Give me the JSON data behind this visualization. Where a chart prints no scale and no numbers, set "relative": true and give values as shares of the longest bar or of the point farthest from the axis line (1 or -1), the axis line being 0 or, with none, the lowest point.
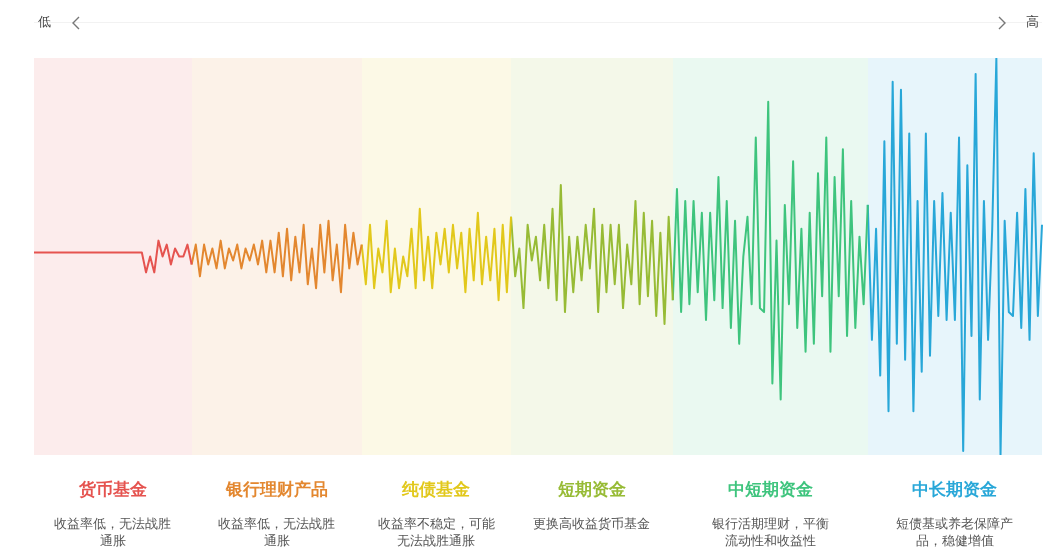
{
  "chart_data": {
    "type": "line",
    "relative": true,
    "grid": false,
    "legend": false,
    "marker": "none",
    "line_style": "solid",
    "categories": [
      null,
      null,
      null,
      null,
      null,
      null,
      null,
      null,
      null,
      null,
      null,
      null,
      null,
      null,
      null,
      null,
      null,
      null,
      null,
      null,
      null,
      null,
      null,
      null,
      null,
      null,
      null,
      null,
      null,
      null,
      null,
      null,
      null,
      null,
      null,
      null,
      null,
      null,
      null,
      null,
      null,
      null,
      null,
      null,
      null,
      null,
      null,
      null,
      null,
      null,
      null,
      null,
      null,
      null,
      null,
      null,
      null,
      null,
      null,
      null,
      null,
      null,
      null,
      null,
      null,
      null,
      null,
      null,
      null,
      null,
      null,
      null,
      null,
      null,
      null,
      null,
      null,
      null,
      null,
      null,
      null,
      null,
      null,
      null,
      null,
      null,
      null,
      null,
      null,
      null,
      null,
      null,
      null,
      null,
      null,
      null,
      null,
      null,
      null,
      null,
      null,
      null,
      null,
      null,
      null,
      null,
      null,
      null,
      null,
      null,
      null,
      null,
      null,
      null,
      null,
      null,
      null,
      null,
      null,
      null,
      null,
      null,
      null,
      null,
      null,
      null,
      null,
      null,
      null,
      null,
      null,
      null,
      null,
      null,
      null,
      null,
      null,
      null,
      null,
      null,
      null,
      null,
      null,
      null,
      null,
      null,
      null,
      null,
      null,
      null,
      null,
      null,
      null,
      null,
      null,
      null,
      null,
      null,
      null,
      null,
      null,
      null,
      null,
      null,
      null,
      null,
      null,
      null,
      null,
      null,
      null,
      null,
      null,
      null,
      null,
      null,
      null,
      null,
      null,
      null,
      null,
      null,
      null,
      null,
      null,
      null,
      null,
      null,
      null,
      null,
      null,
      null,
      null,
      null,
      null,
      null,
      null,
      null,
      null,
      null,
      null,
      null,
      null,
      null,
      null,
      null,
      null,
      null,
      null,
      null,
      null,
      null,
      null,
      null,
      null,
      null,
      null,
      null,
      null,
      null,
      null,
      null,
      null,
      null,
      null,
      null,
      null,
      null,
      null,
      null,
      null,
      null,
      null,
      null,
      null,
      null,
      null,
      null,
      null,
      null,
      null,
      null,
      null,
      null
    ],
    "annotations": [
      "低",
      "高",
      "收益率低，无法战胜通胀",
      "收益率低，无法战胜通胀",
      "收益率不稳定，可能无法战胜通胀",
      "更换高收益货币基金",
      "银行活期理财，平衡流动性和收益性",
      "短债基或养老保障产品，稳健增值"
    ],
    "series": [
      {
        "name": "货币基金",
        "color": "#e5534f",
        "values": [
          0.51,
          0.51,
          0.51,
          0.51,
          0.51,
          0.51,
          0.51,
          0.51,
          0.51,
          0.51,
          0.51,
          0.51,
          0.51,
          0.51,
          0.51,
          0.51,
          0.51,
          0.51,
          0.51,
          0.51,
          0.51,
          0.51,
          0.51,
          0.51,
          0.51,
          0.51,
          0.51,
          0.46,
          0.5,
          0.46,
          0.54,
          0.5,
          0.53,
          0.48,
          0.52,
          0.5,
          0.5,
          0.53,
          0.48,
          null,
          null,
          null,
          null,
          null,
          null,
          null,
          null,
          null,
          null,
          null,
          null,
          null,
          null,
          null,
          null,
          null,
          null,
          null,
          null,
          null,
          null,
          null,
          null,
          null,
          null,
          null,
          null,
          null,
          null,
          null,
          null,
          null,
          null,
          null,
          null,
          null,
          null,
          null,
          null,
          null,
          null,
          null,
          null,
          null,
          null,
          null,
          null,
          null,
          null,
          null,
          null,
          null,
          null,
          null,
          null,
          null,
          null,
          null,
          null,
          null,
          null,
          null,
          null,
          null,
          null,
          null,
          null,
          null,
          null,
          null,
          null,
          null,
          null,
          null,
          null,
          null,
          null,
          null,
          null,
          null,
          null,
          null,
          null,
          null,
          null,
          null,
          null,
          null,
          null,
          null,
          null,
          null,
          null,
          null,
          null,
          null,
          null,
          null,
          null,
          null,
          null,
          null,
          null,
          null,
          null,
          null,
          null,
          null,
          null,
          null,
          null,
          null,
          null,
          null,
          null,
          null,
          null,
          null,
          null,
          null,
          null,
          null,
          null,
          null,
          null,
          null,
          null,
          null,
          null,
          null,
          null,
          null,
          null,
          null,
          null,
          null,
          null,
          null,
          null,
          null,
          null,
          null,
          null,
          null,
          null,
          null,
          null,
          null,
          null,
          null,
          null,
          null,
          null,
          null,
          null,
          null,
          null,
          null,
          null,
          null,
          null,
          null,
          null,
          null,
          null,
          null,
          null,
          null,
          null,
          null,
          null,
          null,
          null,
          null,
          null,
          null,
          null,
          null,
          null,
          null,
          null,
          null,
          null,
          null,
          null,
          null,
          null,
          null,
          null,
          null,
          null,
          null,
          null,
          null,
          null,
          null,
          null,
          null,
          null,
          null,
          null,
          null,
          null,
          null
        ]
      },
      {
        "name": "银行理财产品",
        "color": "#e3872f",
        "values": [
          null,
          null,
          null,
          null,
          null,
          null,
          null,
          null,
          null,
          null,
          null,
          null,
          null,
          null,
          null,
          null,
          null,
          null,
          null,
          null,
          null,
          null,
          null,
          null,
          null,
          null,
          null,
          null,
          null,
          null,
          null,
          null,
          null,
          null,
          null,
          null,
          null,
          null,
          0.48,
          0.53,
          0.45,
          0.53,
          0.48,
          0.52,
          0.47,
          0.54,
          0.47,
          0.52,
          0.49,
          0.53,
          0.47,
          0.52,
          0.49,
          0.53,
          0.48,
          0.54,
          0.46,
          0.54,
          0.46,
          0.56,
          0.45,
          0.57,
          0.44,
          0.55,
          0.46,
          0.58,
          0.43,
          0.52,
          0.42,
          0.58,
          0.46,
          0.59,
          0.44,
          0.53,
          0.41,
          0.58,
          0.47,
          0.56,
          0.48,
          0.53,
          null,
          null,
          null,
          null,
          null,
          null,
          null,
          null,
          null,
          null,
          null,
          null,
          null,
          null,
          null,
          null,
          null,
          null,
          null,
          null,
          null,
          null,
          null,
          null,
          null,
          null,
          null,
          null,
          null,
          null,
          null,
          null,
          null,
          null,
          null,
          null,
          null,
          null,
          null,
          null,
          null,
          null,
          null,
          null,
          null,
          null,
          null,
          null,
          null,
          null,
          null,
          null,
          null,
          null,
          null,
          null,
          null,
          null,
          null,
          null,
          null,
          null,
          null,
          null,
          null,
          null,
          null,
          null,
          null,
          null,
          null,
          null,
          null,
          null,
          null,
          null,
          null,
          null,
          null,
          null,
          null,
          null,
          null,
          null,
          null,
          null,
          null,
          null,
          null,
          null,
          null,
          null,
          null,
          null,
          null,
          null,
          null,
          null,
          null,
          null,
          null,
          null,
          null,
          null,
          null,
          null,
          null,
          null,
          null,
          null,
          null,
          null,
          null,
          null,
          null,
          null,
          null,
          null,
          null,
          null,
          null,
          null,
          null,
          null,
          null,
          null,
          null,
          null,
          null,
          null,
          null,
          null,
          null,
          null,
          null,
          null,
          null,
          null,
          null,
          null,
          null,
          null,
          null,
          null,
          null,
          null,
          null,
          null,
          null,
          null,
          null,
          null,
          null,
          null,
          null,
          null,
          null,
          null,
          null,
          null,
          null,
          null,
          null,
          null
        ]
      },
      {
        "name": "纯债基金",
        "color": "#e2c81b",
        "values": [
          null,
          null,
          null,
          null,
          null,
          null,
          null,
          null,
          null,
          null,
          null,
          null,
          null,
          null,
          null,
          null,
          null,
          null,
          null,
          null,
          null,
          null,
          null,
          null,
          null,
          null,
          null,
          null,
          null,
          null,
          null,
          null,
          null,
          null,
          null,
          null,
          null,
          null,
          null,
          null,
          null,
          null,
          null,
          null,
          null,
          null,
          null,
          null,
          null,
          null,
          null,
          null,
          null,
          null,
          null,
          null,
          null,
          null,
          null,
          null,
          null,
          null,
          null,
          null,
          null,
          null,
          null,
          null,
          null,
          null,
          null,
          null,
          null,
          null,
          null,
          null,
          null,
          null,
          null,
          0.53,
          0.43,
          0.58,
          0.42,
          0.52,
          0.46,
          0.59,
          0.41,
          0.52,
          0.42,
          0.5,
          0.45,
          0.57,
          0.42,
          0.62,
          0.44,
          0.55,
          0.42,
          0.56,
          0.48,
          0.57,
          0.46,
          0.58,
          0.47,
          0.56,
          0.41,
          0.57,
          0.44,
          0.61,
          0.43,
          0.55,
          0.44,
          0.57,
          0.39,
          0.58,
          0.41,
          0.6,
          null,
          null,
          null,
          null,
          null,
          null,
          null,
          null,
          null,
          null,
          null,
          null,
          null,
          null,
          null,
          null,
          null,
          null,
          null,
          null,
          null,
          null,
          null,
          null,
          null,
          null,
          null,
          null,
          null,
          null,
          null,
          null,
          null,
          null,
          null,
          null,
          null,
          null,
          null,
          null,
          null,
          null,
          null,
          null,
          null,
          null,
          null,
          null,
          null,
          null,
          null,
          null,
          null,
          null,
          null,
          null,
          null,
          null,
          null,
          null,
          null,
          null,
          null,
          null,
          null,
          null,
          null,
          null,
          null,
          null,
          null,
          null,
          null,
          null,
          null,
          null,
          null,
          null,
          null,
          null,
          null,
          null,
          null,
          null,
          null,
          null,
          null,
          null,
          null,
          null,
          null,
          null,
          null,
          null,
          null,
          null,
          null,
          null,
          null,
          null,
          null,
          null,
          null,
          null,
          null,
          null,
          null,
          null,
          null,
          null,
          null,
          null,
          null,
          null,
          null,
          null,
          null,
          null,
          null,
          null,
          null,
          null,
          null,
          null,
          null,
          null,
          null,
          null
        ]
      },
      {
        "name": "短期资金",
        "color": "#97bb35",
        "values": [
          null,
          null,
          null,
          null,
          null,
          null,
          null,
          null,
          null,
          null,
          null,
          null,
          null,
          null,
          null,
          null,
          null,
          null,
          null,
          null,
          null,
          null,
          null,
          null,
          null,
          null,
          null,
          null,
          null,
          null,
          null,
          null,
          null,
          null,
          null,
          null,
          null,
          null,
          null,
          null,
          null,
          null,
          null,
          null,
          null,
          null,
          null,
          null,
          null,
          null,
          null,
          null,
          null,
          null,
          null,
          null,
          null,
          null,
          null,
          null,
          null,
          null,
          null,
          null,
          null,
          null,
          null,
          null,
          null,
          null,
          null,
          null,
          null,
          null,
          null,
          null,
          null,
          null,
          null,
          null,
          null,
          null,
          null,
          null,
          null,
          null,
          null,
          null,
          null,
          null,
          null,
          null,
          null,
          null,
          null,
          null,
          null,
          null,
          null,
          null,
          null,
          null,
          null,
          null,
          null,
          null,
          null,
          null,
          null,
          null,
          null,
          null,
          null,
          null,
          null,
          0.6,
          0.45,
          0.52,
          0.37,
          0.58,
          0.49,
          0.55,
          0.44,
          0.58,
          0.42,
          0.62,
          0.39,
          0.68,
          0.36,
          0.55,
          0.41,
          0.55,
          0.44,
          0.58,
          0.47,
          0.62,
          0.36,
          0.58,
          0.41,
          0.58,
          0.43,
          0.58,
          0.37,
          0.53,
          0.43,
          0.64,
          0.38,
          0.61,
          0.4,
          0.59,
          0.35,
          0.56,
          0.33,
          0.6,
          0.39,
          null,
          null,
          null,
          null,
          null,
          null,
          null,
          null,
          null,
          null,
          null,
          null,
          null,
          null,
          null,
          null,
          null,
          null,
          null,
          null,
          null,
          null,
          null,
          null,
          null,
          null,
          null,
          null,
          null,
          null,
          null,
          null,
          null,
          null,
          null,
          null,
          null,
          null,
          null,
          null,
          null,
          null,
          null,
          null,
          null,
          null,
          null,
          null,
          null,
          null,
          null,
          null,
          null,
          null,
          null,
          null,
          null,
          null,
          null,
          null,
          null,
          null,
          null,
          null,
          null,
          null,
          null,
          null,
          null,
          null,
          null,
          null,
          null,
          null,
          null,
          null,
          null,
          null,
          null,
          null,
          null,
          null,
          null,
          null,
          null,
          null,
          null,
          null,
          null
        ]
      },
      {
        "name": "中短期资金",
        "color": "#3ec47d",
        "values": [
          null,
          null,
          null,
          null,
          null,
          null,
          null,
          null,
          null,
          null,
          null,
          null,
          null,
          null,
          null,
          null,
          null,
          null,
          null,
          null,
          null,
          null,
          null,
          null,
          null,
          null,
          null,
          null,
          null,
          null,
          null,
          null,
          null,
          null,
          null,
          null,
          null,
          null,
          null,
          null,
          null,
          null,
          null,
          null,
          null,
          null,
          null,
          null,
          null,
          null,
          null,
          null,
          null,
          null,
          null,
          null,
          null,
          null,
          null,
          null,
          null,
          null,
          null,
          null,
          null,
          null,
          null,
          null,
          null,
          null,
          null,
          null,
          null,
          null,
          null,
          null,
          null,
          null,
          null,
          null,
          null,
          null,
          null,
          null,
          null,
          null,
          null,
          null,
          null,
          null,
          null,
          null,
          null,
          null,
          null,
          null,
          null,
          null,
          null,
          null,
          null,
          null,
          null,
          null,
          null,
          null,
          null,
          null,
          null,
          null,
          null,
          null,
          null,
          null,
          null,
          null,
          null,
          null,
          null,
          null,
          null,
          null,
          null,
          null,
          null,
          null,
          null,
          null,
          null,
          null,
          null,
          null,
          null,
          null,
          null,
          null,
          null,
          null,
          null,
          null,
          null,
          null,
          null,
          null,
          null,
          null,
          null,
          null,
          null,
          null,
          null,
          null,
          null,
          null,
          0.39,
          0.67,
          0.36,
          0.64,
          0.38,
          0.64,
          0.41,
          0.61,
          0.34,
          0.61,
          0.39,
          0.7,
          0.37,
          0.64,
          0.32,
          0.59,
          0.28,
          0.5,
          0.6,
          0.38,
          0.8,
          0.37,
          0.36,
          0.89,
          0.18,
          0.54,
          0.14,
          0.63,
          0.38,
          0.74,
          0.32,
          0.57,
          0.26,
          0.61,
          0.28,
          0.71,
          0.4,
          0.8,
          0.26,
          0.7,
          0.4,
          0.77,
          0.3,
          0.64,
          0.32,
          0.55,
          0.38,
          0.63,
          null,
          null,
          null,
          null,
          null,
          null,
          null,
          null,
          null,
          null,
          null,
          null,
          null,
          null,
          null,
          null,
          null,
          null,
          null,
          null,
          null,
          null,
          null,
          null,
          null,
          null,
          null,
          null,
          null,
          null,
          null,
          null,
          null,
          null,
          null,
          null,
          null,
          null,
          null,
          null,
          null,
          null
        ]
      },
      {
        "name": "中长期资金",
        "color": "#28a7d8",
        "values": [
          null,
          null,
          null,
          null,
          null,
          null,
          null,
          null,
          null,
          null,
          null,
          null,
          null,
          null,
          null,
          null,
          null,
          null,
          null,
          null,
          null,
          null,
          null,
          null,
          null,
          null,
          null,
          null,
          null,
          null,
          null,
          null,
          null,
          null,
          null,
          null,
          null,
          null,
          null,
          null,
          null,
          null,
          null,
          null,
          null,
          null,
          null,
          null,
          null,
          null,
          null,
          null,
          null,
          null,
          null,
          null,
          null,
          null,
          null,
          null,
          null,
          null,
          null,
          null,
          null,
          null,
          null,
          null,
          null,
          null,
          null,
          null,
          null,
          null,
          null,
          null,
          null,
          null,
          null,
          null,
          null,
          null,
          null,
          null,
          null,
          null,
          null,
          null,
          null,
          null,
          null,
          null,
          null,
          null,
          null,
          null,
          null,
          null,
          null,
          null,
          null,
          null,
          null,
          null,
          null,
          null,
          null,
          null,
          null,
          null,
          null,
          null,
          null,
          null,
          null,
          null,
          null,
          null,
          null,
          null,
          null,
          null,
          null,
          null,
          null,
          null,
          null,
          null,
          null,
          null,
          null,
          null,
          null,
          null,
          null,
          null,
          null,
          null,
          null,
          null,
          null,
          null,
          null,
          null,
          null,
          null,
          null,
          null,
          null,
          null,
          null,
          null,
          null,
          null,
          null,
          null,
          null,
          null,
          null,
          null,
          null,
          null,
          null,
          null,
          null,
          null,
          null,
          null,
          null,
          null,
          null,
          null,
          null,
          null,
          null,
          null,
          null,
          null,
          null,
          null,
          null,
          null,
          null,
          null,
          null,
          null,
          null,
          null,
          null,
          null,
          null,
          null,
          null,
          null,
          null,
          null,
          null,
          null,
          null,
          null,
          null,
          0.63,
          0.29,
          0.57,
          0.2,
          0.79,
          0.11,
          0.94,
          0.28,
          0.92,
          0.24,
          0.81,
          0.11,
          0.64,
          0.21,
          0.81,
          0.25,
          0.64,
          0.35,
          0.66,
          0.34,
          0.61,
          0.34,
          0.8,
          0.01,
          0.73,
          0.3,
          0.96,
          0.14,
          0.64,
          0.29,
          0.57,
          1.0,
          0.0,
          0.59,
          0.36,
          0.35,
          0.61,
          0.32,
          0.67,
          0.29,
          0.76,
          0.35,
          0.58
        ]
      }
    ]
  }
}
